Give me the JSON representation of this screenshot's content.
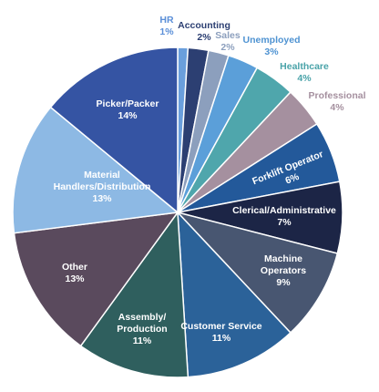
{
  "chart_data": {
    "type": "pie",
    "title": "",
    "slices": [
      {
        "label": "HR",
        "value": 1,
        "value_label": "1%",
        "color": "#6a9fdc"
      },
      {
        "label": "Accounting",
        "value": 2,
        "value_label": "2%",
        "color": "#2c3f72"
      },
      {
        "label": "Sales",
        "value": 2,
        "value_label": "2%",
        "color": "#8c9fbd"
      },
      {
        "label": "Unemployed",
        "value": 3,
        "value_label": "3%",
        "color": "#5b9fd9"
      },
      {
        "label": "Healthcare",
        "value": 4,
        "value_label": "4%",
        "color": "#4fa6ac"
      },
      {
        "label": "Professional",
        "value": 4,
        "value_label": "4%",
        "color": "#a5909f"
      },
      {
        "label": "Forklift Operator",
        "value": 6,
        "value_label": "6%",
        "color": "#23599a"
      },
      {
        "label": "Clerical/Administrative",
        "value": 7,
        "value_label": "7%",
        "color": "#1c2546"
      },
      {
        "label": "Machine Operators",
        "value": 9,
        "value_label": "9%",
        "color": "#485671"
      },
      {
        "label": "Customer Service",
        "value": 11,
        "value_label": "11%",
        "color": "#2b6299"
      },
      {
        "label": "Assembly/ Production",
        "value": 11,
        "value_label": "11%",
        "color": "#2f5f5e"
      },
      {
        "label": "Other",
        "value": 13,
        "value_label": "13%",
        "color": "#5a4a5d"
      },
      {
        "label": "Material Handlers/Distribution",
        "value": 13,
        "value_label": "13%",
        "color": "#8db9e4"
      },
      {
        "label": "Picker/Packer",
        "value": 14,
        "value_label": "14%",
        "color": "#3554a3"
      }
    ]
  }
}
